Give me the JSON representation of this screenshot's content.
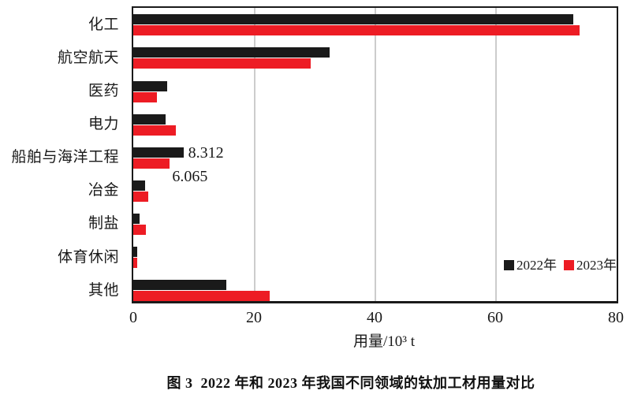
{
  "figure": {
    "caption": "图 3  2022 年和 2023 年我国不同领域的钛加工材用量对比"
  },
  "colors": {
    "series_2022": "#1a1a1a",
    "series_2023": "#ed1c24",
    "gridline": "#cccccc",
    "axis": "#1a1a1a",
    "background": "#ffffff"
  },
  "chart_data": {
    "type": "bar",
    "orientation": "horizontal",
    "title": "",
    "xlabel": "用量/10³ t",
    "ylabel": "",
    "xlim": [
      0,
      80
    ],
    "xticks": [
      0,
      20,
      40,
      60,
      80
    ],
    "grid": "vertical",
    "legend_position": "inside-bottom-right",
    "categories": [
      "化工",
      "航空航天",
      "医药",
      "电力",
      "船舶与海洋工程",
      "冶金",
      "制盐",
      "体育休闲",
      "其他"
    ],
    "series": [
      {
        "name": "2022年",
        "color": "#1a1a1a",
        "values": [
          73,
          32.6,
          5.6,
          5.3,
          8.312,
          2.0,
          1.0,
          0.7,
          15.4
        ]
      },
      {
        "name": "2023年",
        "color": "#ed1c24",
        "values": [
          74,
          29.4,
          3.9,
          7.0,
          6.065,
          2.5,
          2.1,
          0.7,
          22.6
        ]
      }
    ],
    "annotations": [
      {
        "category": "船舶与海洋工程",
        "series": "2022年",
        "text": "8.312"
      },
      {
        "category": "船舶与海洋工程",
        "series": "2023年",
        "text": "6.065"
      }
    ]
  }
}
